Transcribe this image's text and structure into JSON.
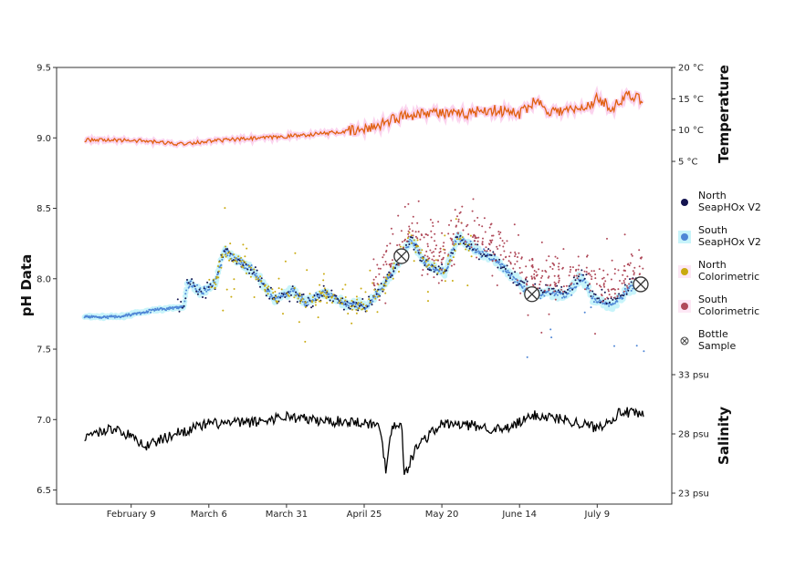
{
  "chart_data": {
    "type": "scatter",
    "xlabel": "",
    "ylabel": "pH Data",
    "right_labels": {
      "temperature": "Temperature",
      "salinity": "Salinity"
    },
    "x_unit": "day of year",
    "xlim": [
      16,
      214
    ],
    "x_ticks": [
      {
        "day": 40,
        "label": "February 9"
      },
      {
        "day": 65,
        "label": "March 6"
      },
      {
        "day": 90,
        "label": "March 31"
      },
      {
        "day": 115,
        "label": "April 25"
      },
      {
        "day": 140,
        "label": "May 20"
      },
      {
        "day": 165,
        "label": "June 14"
      },
      {
        "day": 190,
        "label": "July 9"
      }
    ],
    "ylim": [
      6.4,
      9.5
    ],
    "y_ticks": [
      "9.5",
      "9.0",
      "8.5",
      "8.0",
      "7.5",
      "7.0",
      "6.5"
    ],
    "temp_ticks": [
      {
        "v": 20,
        "label": "20 °C"
      },
      {
        "v": 15,
        "label": "15 °C"
      },
      {
        "v": 10,
        "label": "10 °C"
      },
      {
        "v": 5,
        "label": "5 °C"
      }
    ],
    "sal_ticks": [
      {
        "v": 33,
        "label": "33 psu"
      },
      {
        "v": 28,
        "label": "28 psu"
      },
      {
        "v": 23,
        "label": "23 psu"
      }
    ],
    "legend_position": "right",
    "legend": [
      {
        "line1": "North",
        "line2": "SeapHOx V2",
        "color": "#141450",
        "halo": ""
      },
      {
        "line1": "South",
        "line2": "SeapHOx V2",
        "color": "#4f86d6",
        "halo": "#c8f4fa"
      },
      {
        "line1": "North",
        "line2": "Colorimetric",
        "color": "#c9aa10",
        "halo": "#fde8f5"
      },
      {
        "line1": "South",
        "line2": "Colorimetric",
        "color": "#b04a5a",
        "halo": "#fde8f5"
      },
      {
        "line1": "Bottle",
        "line2": "Sample",
        "color": "#444444",
        "halo": ""
      }
    ],
    "ph_trend": [
      [
        25,
        7.73
      ],
      [
        36,
        7.73
      ],
      [
        48,
        7.78
      ],
      [
        57,
        7.8
      ],
      [
        58,
        7.97
      ],
      [
        63,
        7.9
      ],
      [
        67,
        7.97
      ],
      [
        70,
        8.2
      ],
      [
        74,
        8.14
      ],
      [
        80,
        8.04
      ],
      [
        86,
        7.85
      ],
      [
        92,
        7.92
      ],
      [
        96,
        7.83
      ],
      [
        102,
        7.9
      ],
      [
        108,
        7.83
      ],
      [
        116,
        7.81
      ],
      [
        121,
        7.94
      ],
      [
        127,
        8.14
      ],
      [
        130,
        8.28
      ],
      [
        135,
        8.1
      ],
      [
        141,
        8.04
      ],
      [
        145,
        8.3
      ],
      [
        151,
        8.2
      ],
      [
        157,
        8.14
      ],
      [
        163,
        8.01
      ],
      [
        169,
        7.88
      ],
      [
        174,
        7.91
      ],
      [
        180,
        7.88
      ],
      [
        185,
        8.01
      ],
      [
        189,
        7.85
      ],
      [
        195,
        7.81
      ],
      [
        201,
        7.94
      ],
      [
        205,
        7.96
      ]
    ],
    "temperature": [
      [
        25,
        8.4
      ],
      [
        40,
        8.4
      ],
      [
        55,
        7.8
      ],
      [
        70,
        8.4
      ],
      [
        85,
        8.8
      ],
      [
        100,
        9.4
      ],
      [
        115,
        10
      ],
      [
        125,
        11.9
      ],
      [
        135,
        13
      ],
      [
        145,
        12.4
      ],
      [
        155,
        13.3
      ],
      [
        165,
        12.6
      ],
      [
        170,
        14.8
      ],
      [
        175,
        13
      ],
      [
        185,
        13.3
      ],
      [
        190,
        15
      ],
      [
        195,
        13.6
      ],
      [
        200,
        15.5
      ],
      [
        205,
        14.8
      ]
    ],
    "salinity": [
      [
        25,
        27.85
      ],
      [
        35,
        28.5
      ],
      [
        45,
        27
      ],
      [
        55,
        28.1
      ],
      [
        65,
        28.85
      ],
      [
        80,
        29
      ],
      [
        90,
        29.5
      ],
      [
        100,
        29.1
      ],
      [
        115,
        29
      ],
      [
        120,
        28.6
      ],
      [
        122,
        25
      ],
      [
        124,
        28.8
      ],
      [
        127,
        28.85
      ],
      [
        128,
        24.5
      ],
      [
        132,
        27
      ],
      [
        140,
        28.85
      ],
      [
        150,
        28.7
      ],
      [
        160,
        28.3
      ],
      [
        170,
        29.6
      ],
      [
        180,
        29.2
      ],
      [
        190,
        28.5
      ],
      [
        198,
        29.9
      ],
      [
        205,
        29.5
      ]
    ],
    "bottle_samples": [
      [
        127,
        8.16
      ],
      [
        169,
        7.89
      ],
      [
        204,
        7.96
      ]
    ],
    "colors": {
      "temperature": "#e0600f",
      "salinity": "#000000"
    }
  }
}
